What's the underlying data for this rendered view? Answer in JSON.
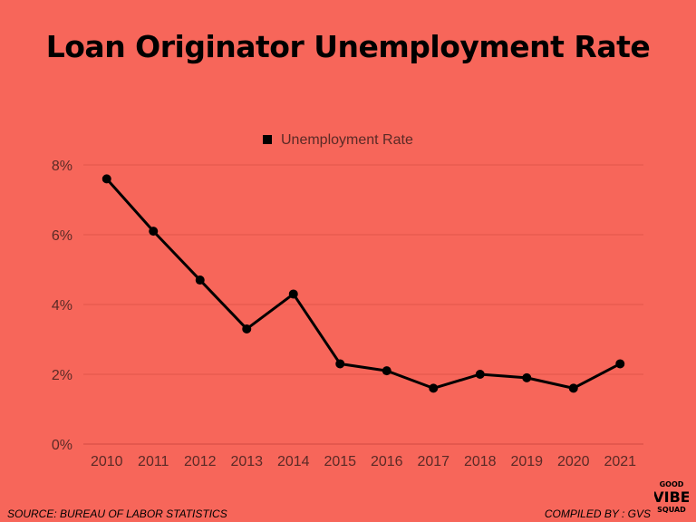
{
  "header": {
    "title": "Loan Originator Unemployment Rate"
  },
  "footer": {
    "source": "SOURCE: BUREAU OF LABOR STATISTICS",
    "compiled": "COMPILED BY : GVS"
  },
  "logo": {
    "line1": "GOOD",
    "line2": "VIBE",
    "line3": "SQUAD"
  },
  "colors": {
    "background": "#f7665a",
    "line": "#000000",
    "grid": "#e0554a",
    "tick_text": "#5a2a26"
  },
  "chart_data": {
    "type": "line",
    "title": "Loan Originator Unemployment Rate",
    "xlabel": "",
    "ylabel": "",
    "categories": [
      "2010",
      "2011",
      "2012",
      "2013",
      "2014",
      "2015",
      "2016",
      "2017",
      "2018",
      "2019",
      "2020",
      "2021"
    ],
    "series": [
      {
        "name": "Unemployment Rate",
        "values": [
          7.6,
          6.1,
          4.7,
          3.3,
          4.3,
          2.3,
          2.1,
          1.6,
          2.0,
          1.9,
          1.6,
          2.3
        ]
      }
    ],
    "ylim": [
      0,
      8
    ],
    "yticks": [
      "0%",
      "2%",
      "4%",
      "6%",
      "8%"
    ],
    "grid": true,
    "legend_position": "top-center"
  }
}
